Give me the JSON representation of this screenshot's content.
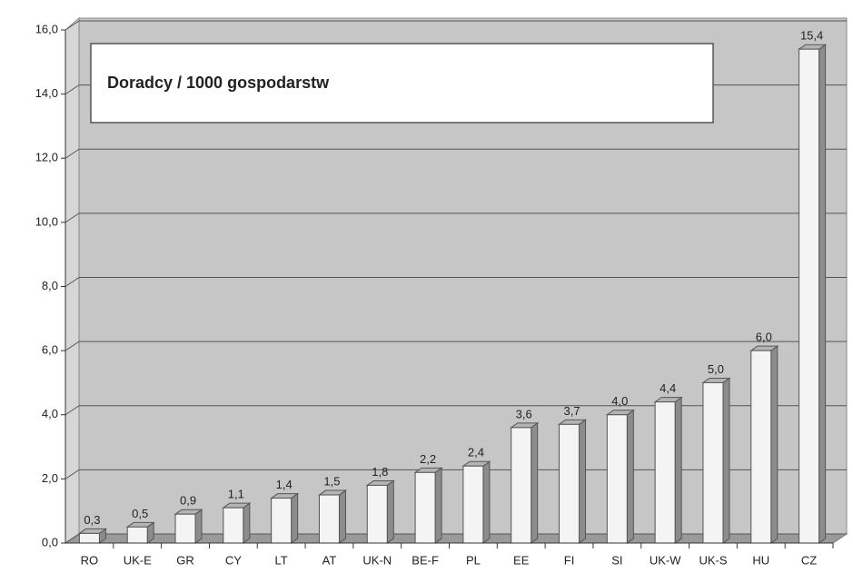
{
  "chart_data": {
    "type": "bar3d",
    "title": "Doradcy / 1000 gospodarstw",
    "categories": [
      "RO",
      "UK-E",
      "GR",
      "CY",
      "LT",
      "AT",
      "UK-N",
      "BE-F",
      "PL",
      "EE",
      "FI",
      "SI",
      "UK-W",
      "UK-S",
      "HU",
      "CZ"
    ],
    "values": [
      0.3,
      0.5,
      0.9,
      1.1,
      1.4,
      1.5,
      1.8,
      2.2,
      2.4,
      3.6,
      3.7,
      4.0,
      4.4,
      5.0,
      6.0,
      15.4
    ],
    "value_labels": [
      "0,3",
      "0,5",
      "0,9",
      "1,1",
      "1,4",
      "1,5",
      "1,8",
      "2,2",
      "2,4",
      "3,6",
      "3,7",
      "4,0",
      "4,4",
      "5,0",
      "6,0",
      "15,4"
    ],
    "color": "#f4f4f4",
    "ylim": [
      0,
      16
    ],
    "yticks": [
      {
        "value": 0,
        "label": "0,0"
      },
      {
        "value": 2,
        "label": "2,0"
      },
      {
        "value": 4,
        "label": "4,0"
      },
      {
        "value": 6,
        "label": "6,0"
      },
      {
        "value": 8,
        "label": "8,0"
      },
      {
        "value": 10,
        "label": "10,0"
      },
      {
        "value": 12,
        "label": "12,0"
      },
      {
        "value": 14,
        "label": "14,0"
      },
      {
        "value": 16,
        "label": "16,0"
      }
    ],
    "grid": true
  }
}
